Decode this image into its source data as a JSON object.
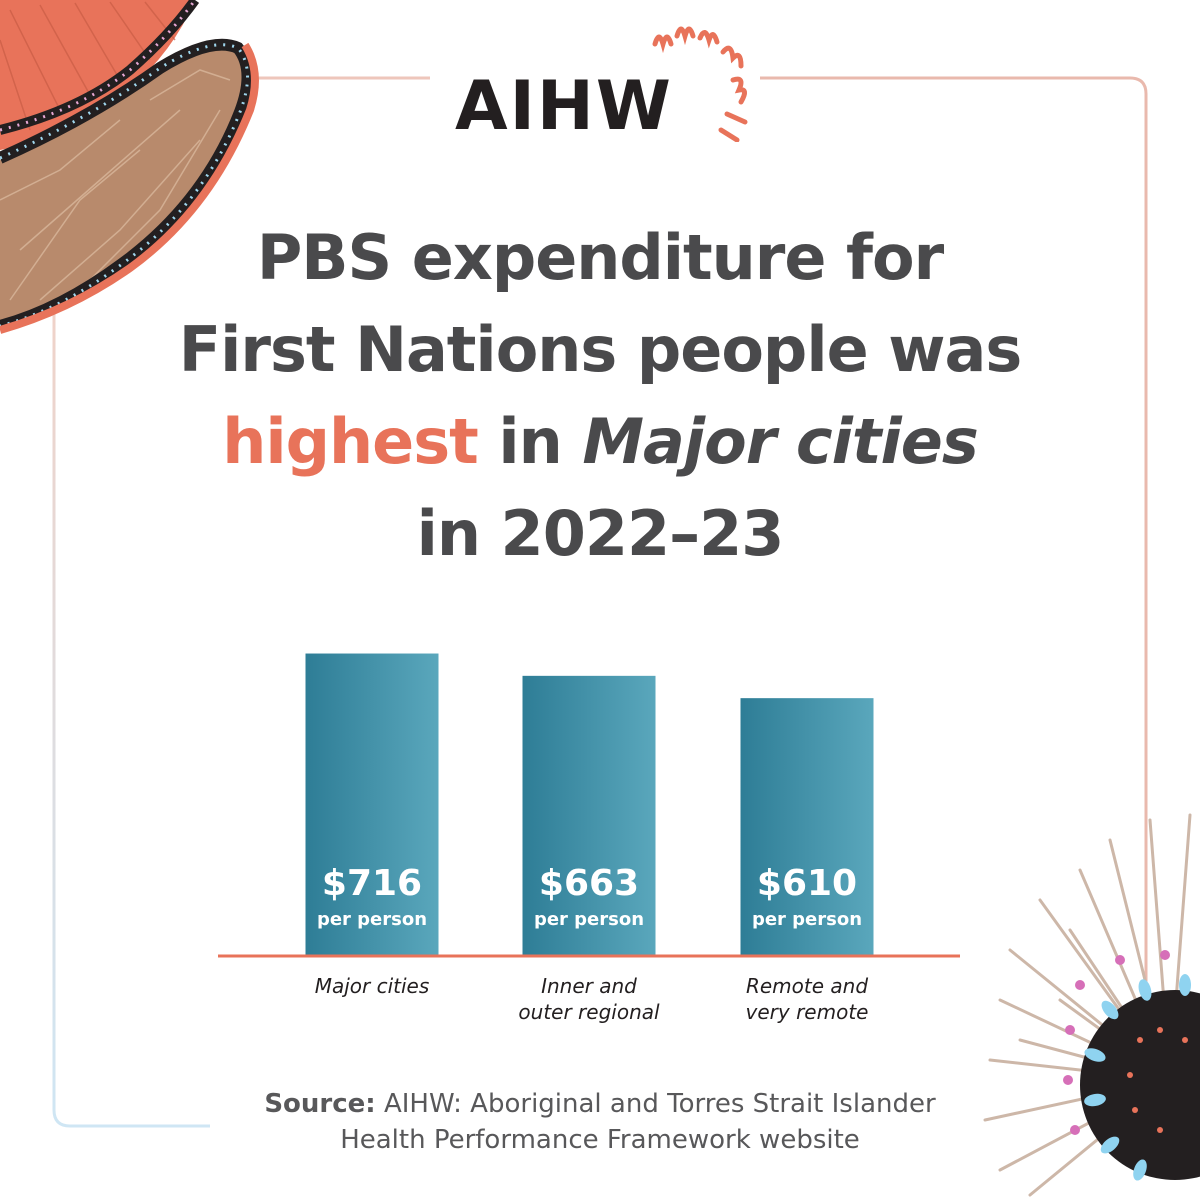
{
  "brand": {
    "logo_text": "AIHW",
    "colors": {
      "accent": "#e8735a",
      "bar_dark": "#2e7d96",
      "bar_light": "#5aa7bc",
      "text": "#4a4a4c",
      "logo": "#231f20",
      "baseline": "#e8735a"
    }
  },
  "headline": {
    "line1": "PBS expenditure for",
    "line2": "First Nations people was",
    "highlight": "highest",
    "middle": "in",
    "emphasis": "Major cities",
    "line4": "in 2022–23"
  },
  "chart_data": {
    "type": "bar",
    "categories": [
      "Major cities",
      "Inner and outer regional",
      "Remote and very remote"
    ],
    "category_lines": [
      [
        "Major cities"
      ],
      [
        "Inner and",
        "outer regional"
      ],
      [
        "Remote and",
        "very remote"
      ]
    ],
    "values": [
      716,
      663,
      610
    ],
    "value_labels": [
      "$716",
      "$663",
      "$610"
    ],
    "unit_label": "per person",
    "ylim": [
      0,
      760
    ],
    "title": "",
    "xlabel": "",
    "ylabel": ""
  },
  "source": {
    "label": "Source:",
    "text": "AIHW: Aboriginal and Torres Strait Islander",
    "text2": "Health Performance Framework website"
  },
  "decor": {
    "top_left": "aboriginal-art-shield-decoration",
    "bottom_right": "aboriginal-art-sea-urchin-decoration",
    "logo_mark": "sunburst-icon"
  }
}
